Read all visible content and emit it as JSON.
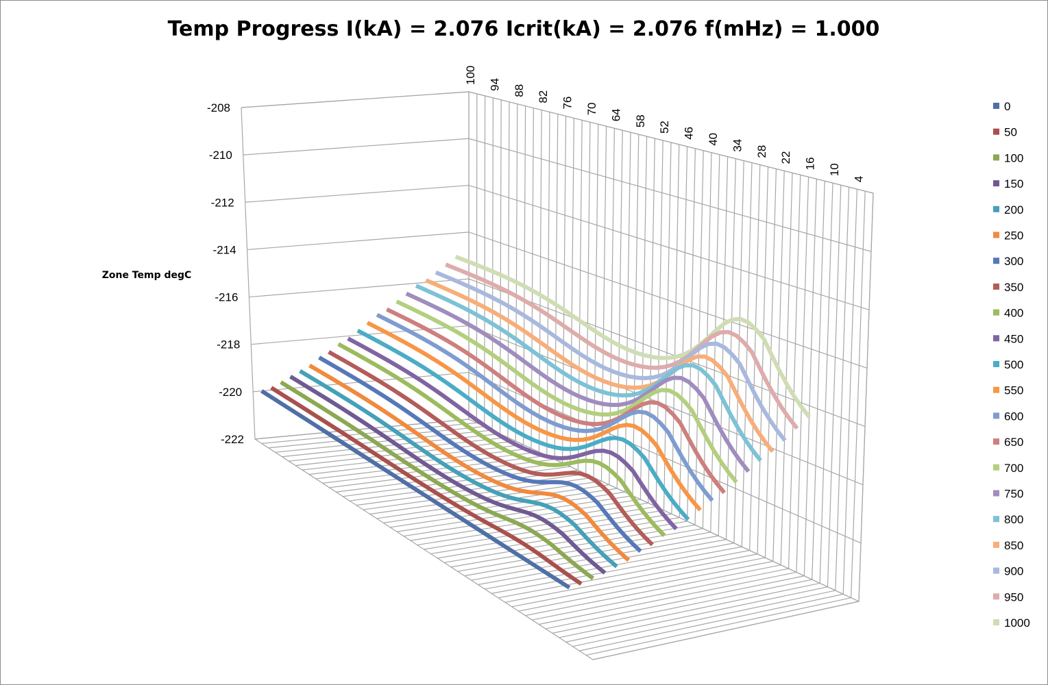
{
  "chart_data": {
    "type": "3d-line",
    "title": "Temp Progress I(kA) = 2.076 Icrit(kA) = 2.076 f(mHz) = 1.000",
    "ylabel": "Zone Temp degC",
    "ylim": [
      -222,
      -208
    ],
    "y_ticks": [
      "-208",
      "-210",
      "-212",
      "-214",
      "-216",
      "-218",
      "-220",
      "-222"
    ],
    "x_range": [
      100,
      0
    ],
    "x_ticks": [
      "100",
      "94",
      "88",
      "82",
      "76",
      "70",
      "64",
      "58",
      "52",
      "46",
      "40",
      "34",
      "28",
      "22",
      "16",
      "10",
      "4"
    ],
    "grid": true,
    "legend_position": "right",
    "series": [
      {
        "name": "0",
        "color": "#4F6FA6",
        "base": -220.0,
        "amp": 0.0
      },
      {
        "name": "50",
        "color": "#A9504D",
        "base": -219.9,
        "amp": 0.2
      },
      {
        "name": "100",
        "color": "#8CA852",
        "base": -219.7,
        "amp": 0.5
      },
      {
        "name": "150",
        "color": "#6F5A92",
        "base": -219.5,
        "amp": 0.8
      },
      {
        "name": "200",
        "color": "#45A0B8",
        "base": -219.3,
        "amp": 1.0
      },
      {
        "name": "250",
        "color": "#F08A3E",
        "base": -219.1,
        "amp": 1.2
      },
      {
        "name": "300",
        "color": "#5678B8",
        "base": -218.8,
        "amp": 1.4
      },
      {
        "name": "350",
        "color": "#B35C59",
        "base": -218.6,
        "amp": 1.6
      },
      {
        "name": "400",
        "color": "#9CBB5E",
        "base": -218.3,
        "amp": 1.8
      },
      {
        "name": "450",
        "color": "#8064A2",
        "base": -218.1,
        "amp": 2.0
      },
      {
        "name": "500",
        "color": "#4BACC6",
        "base": -217.8,
        "amp": 2.2
      },
      {
        "name": "550",
        "color": "#F79646",
        "base": -217.5,
        "amp": 2.4
      },
      {
        "name": "600",
        "color": "#7E9CCF",
        "base": -217.2,
        "amp": 2.6
      },
      {
        "name": "650",
        "color": "#CD7F7E",
        "base": -217.0,
        "amp": 2.7
      },
      {
        "name": "700",
        "color": "#B3CF7E",
        "base": -216.7,
        "amp": 2.8
      },
      {
        "name": "750",
        "color": "#9F8DBF",
        "base": -216.4,
        "amp": 2.9
      },
      {
        "name": "800",
        "color": "#7DC2D6",
        "base": -216.1,
        "amp": 3.0
      },
      {
        "name": "850",
        "color": "#F7AE7A",
        "base": -215.9,
        "amp": 3.0
      },
      {
        "name": "900",
        "color": "#A9B9DD",
        "base": -215.6,
        "amp": 3.1
      },
      {
        "name": "950",
        "color": "#DDACAB",
        "base": -215.3,
        "amp": 3.1
      },
      {
        "name": "1000",
        "color": "#CFDDB5",
        "base": -215.0,
        "amp": 3.2
      }
    ]
  }
}
